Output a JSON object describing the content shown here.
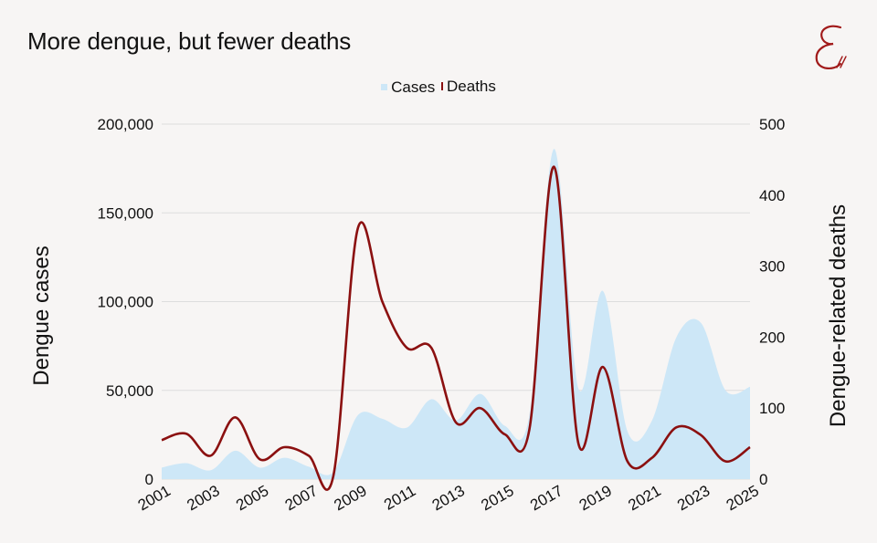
{
  "title": "More dengue, but fewer deaths",
  "colors": {
    "cases_fill": "#cde7f7",
    "deaths_line": "#8b1010",
    "grid": "#dddddd",
    "background": "#f7f5f4",
    "logo": "#a11a1a"
  },
  "legend": {
    "cases": "Cases",
    "deaths": "Deaths"
  },
  "chart_data": {
    "type": "area",
    "title": "More dengue, but fewer deaths",
    "legend_position": "top-center",
    "grid": true,
    "x": [
      2001,
      2002,
      2003,
      2004,
      2005,
      2006,
      2007,
      2008,
      2009,
      2010,
      2011,
      2012,
      2013,
      2014,
      2015,
      2016,
      2017,
      2018,
      2019,
      2020,
      2021,
      2022,
      2023,
      2024,
      2025
    ],
    "x_tick_labels": [
      "2001",
      "2003",
      "2005",
      "2007",
      "2009",
      "2011",
      "2013",
      "2015",
      "2017",
      "2019",
      "2021",
      "2023",
      "2025"
    ],
    "y_left": {
      "label": "Dengue cases",
      "lim": [
        0,
        200000
      ],
      "ticks": [
        "0",
        "50,000",
        "100,000",
        "150,000",
        "200,000"
      ],
      "tick_values": [
        0,
        50000,
        100000,
        150000,
        200000
      ]
    },
    "y_right": {
      "label": "Dengue-related deaths",
      "lim": [
        0,
        500
      ],
      "ticks": [
        "0",
        "100",
        "200",
        "300",
        "400",
        "500"
      ],
      "tick_values": [
        0,
        100,
        200,
        300,
        400,
        500
      ]
    },
    "series": [
      {
        "name": "Cases",
        "type": "area",
        "axis": "left",
        "values": [
          6500,
          9000,
          5000,
          16000,
          6500,
          12000,
          7000,
          4000,
          36000,
          34000,
          29000,
          45000,
          33000,
          48000,
          30000,
          36000,
          186000,
          51000,
          106000,
          27000,
          33000,
          80000,
          88000,
          50000,
          52000
        ]
      },
      {
        "name": "Deaths",
        "type": "line",
        "axis": "right",
        "values": [
          55,
          64,
          33,
          87,
          28,
          45,
          33,
          4,
          353,
          250,
          185,
          185,
          80,
          100,
          63,
          70,
          440,
          50,
          158,
          25,
          30,
          73,
          62,
          25,
          45
        ]
      }
    ]
  }
}
